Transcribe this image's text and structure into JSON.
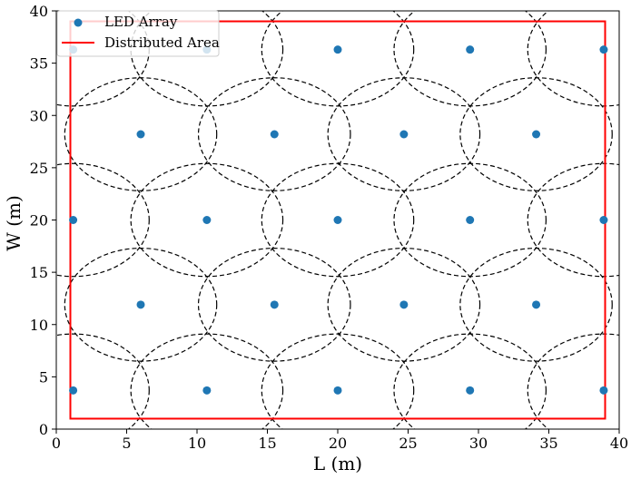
{
  "chart_data": {
    "type": "scatter",
    "xlabel": "L (m)",
    "ylabel": "W (m)",
    "xlim": [
      0,
      40
    ],
    "ylim": [
      0,
      40
    ],
    "xticks": [
      0,
      5,
      10,
      15,
      20,
      25,
      30,
      35,
      40
    ],
    "yticks": [
      0,
      5,
      10,
      15,
      20,
      25,
      30,
      35,
      40
    ],
    "grid": false,
    "legend": {
      "position": "top-left",
      "entries": [
        "LED Array",
        "Distributed Area"
      ]
    },
    "series": [
      {
        "name": "LED Array",
        "kind": "scatter",
        "color": "#1f77b4",
        "points": [
          [
            1.2,
            3.7
          ],
          [
            10.7,
            3.7
          ],
          [
            20.0,
            3.7
          ],
          [
            29.4,
            3.7
          ],
          [
            38.9,
            3.7
          ],
          [
            6.0,
            11.9
          ],
          [
            15.5,
            11.9
          ],
          [
            24.7,
            11.9
          ],
          [
            34.1,
            11.9
          ],
          [
            1.2,
            20.0
          ],
          [
            10.7,
            20.0
          ],
          [
            20.0,
            20.0
          ],
          [
            29.4,
            20.0
          ],
          [
            38.9,
            20.0
          ],
          [
            6.0,
            28.2
          ],
          [
            15.5,
            28.2
          ],
          [
            24.7,
            28.2
          ],
          [
            34.1,
            28.2
          ],
          [
            1.2,
            36.3
          ],
          [
            10.7,
            36.3
          ],
          [
            20.0,
            36.3
          ],
          [
            29.4,
            36.3
          ],
          [
            38.9,
            36.3
          ]
        ]
      },
      {
        "name": "Distributed Area",
        "kind": "rectangle",
        "color": "#ff0000",
        "x_range": [
          1,
          39
        ],
        "y_range": [
          1,
          39
        ]
      }
    ],
    "coverage_circles": {
      "style": "dashed",
      "color": "#000000",
      "radius_m": 5.4
    }
  }
}
